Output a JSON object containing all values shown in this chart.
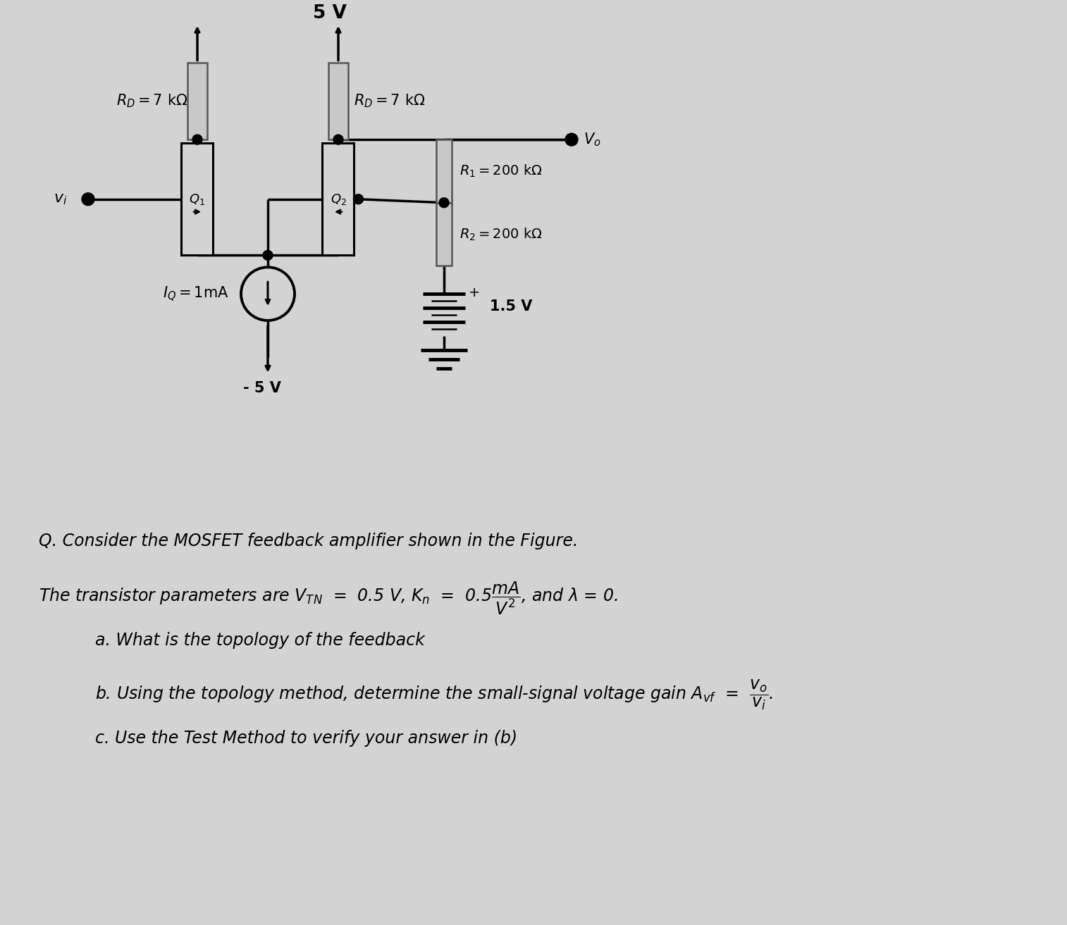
{
  "bg_color": "#d3d3d3",
  "circuit": {
    "VDD": "5 V",
    "RD1_label": "R_D = 7 kΩ",
    "RD2_label": "R_D = 7 kΩ",
    "R1_label": "R_1 = 200 kΩ",
    "R2_label": "R_2 = 200 kΩ",
    "IQ_label": "I_Q = 1mA",
    "V15_label": "1.5 V",
    "Vneg_label": "- 5 V",
    "Vo_label": "V_o",
    "Q1_label": "Q_1",
    "Q2_label": "Q_2",
    "vi_label": "v_i"
  },
  "q_line1": "Q. Consider the MOSFET feedback amplifier shown in the Figure.",
  "q_line2": "The transistor parameters are $V_{TN}$  =  0.5 V, $K_n$  =  0.5$\\dfrac{mA}{V^2}$, and $\\lambda$ = 0.",
  "q_line_a": "a. What is the topology of the feedback",
  "q_line_b": "b. Using the topology method, determine the small-signal voltage gain $A_{vf}$  =  $\\dfrac{v_o}{v_i}$.",
  "q_line_c": "c. Use the Test Method to verify your answer in (b)"
}
